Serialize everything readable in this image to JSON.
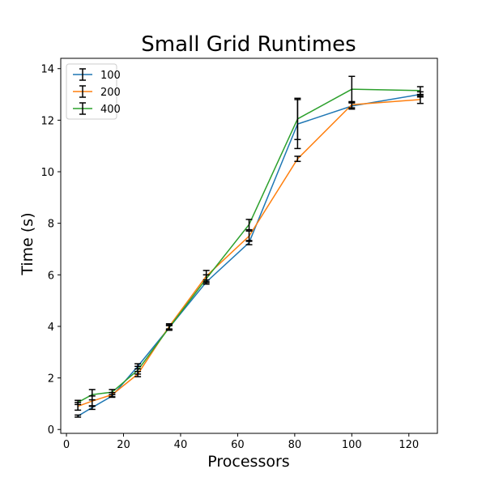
{
  "chart_data": {
    "type": "line",
    "title": "Small Grid Runtimes",
    "xlabel": "Processors",
    "ylabel": "Time (s)",
    "xlim": [
      -2,
      130
    ],
    "ylim": [
      -0.15,
      14.4
    ],
    "xticks": [
      0,
      20,
      40,
      60,
      80,
      100,
      120
    ],
    "yticks": [
      0,
      2,
      4,
      6,
      8,
      10,
      12,
      14
    ],
    "grid": false,
    "legend_position": "upper-left",
    "error_bar_color": "#000000",
    "series": [
      {
        "name": "100",
        "color": "#1f77b4",
        "x": [
          4,
          9,
          16,
          25,
          36,
          49,
          64,
          81,
          100,
          124
        ],
        "y": [
          0.52,
          0.85,
          1.3,
          2.45,
          3.95,
          5.72,
          7.25,
          11.85,
          12.55,
          13.0
        ],
        "yerr": [
          0.04,
          0.07,
          0.05,
          0.1,
          0.1,
          0.08,
          0.08,
          0.95,
          0.12,
          0.1
        ]
      },
      {
        "name": "200",
        "color": "#ff7f0e",
        "x": [
          4,
          9,
          16,
          25,
          36,
          49,
          64,
          81,
          100,
          124
        ],
        "y": [
          0.9,
          1.1,
          1.35,
          2.15,
          4.0,
          5.95,
          7.5,
          10.5,
          12.6,
          12.8
        ],
        "yerr": [
          0.15,
          0.2,
          0.08,
          0.1,
          0.1,
          0.22,
          0.2,
          0.1,
          0.12,
          0.15
        ]
      },
      {
        "name": "400",
        "color": "#2ca02c",
        "x": [
          4,
          9,
          16,
          25,
          36,
          49,
          64,
          81,
          100,
          124
        ],
        "y": [
          1.05,
          1.35,
          1.45,
          2.3,
          3.95,
          5.85,
          7.95,
          12.05,
          13.2,
          13.15
        ],
        "yerr": [
          0.08,
          0.2,
          0.1,
          0.15,
          0.08,
          0.15,
          0.2,
          0.8,
          0.5,
          0.15
        ]
      }
    ]
  }
}
